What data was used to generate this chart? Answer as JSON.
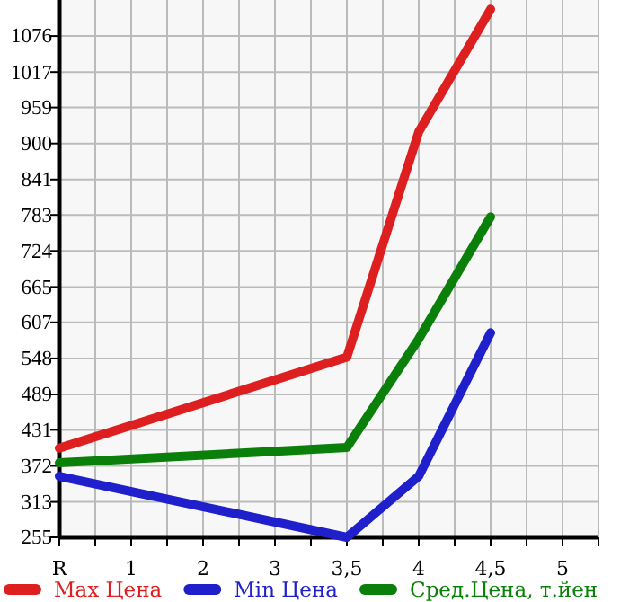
{
  "chart_data": {
    "type": "line",
    "categories": [
      "R",
      "1",
      "2",
      "3",
      "3,5",
      "4",
      "4,5",
      "5"
    ],
    "series": [
      {
        "name": "Max Цена",
        "color": "#dd1f1f",
        "values": [
          401,
          null,
          null,
          null,
          550,
          919,
          1120,
          null
        ]
      },
      {
        "name": "Min Цена",
        "color": "#1f1fcc",
        "values": [
          355,
          null,
          null,
          null,
          255,
          355,
          590,
          null
        ]
      },
      {
        "name": "Сред.Цена, т.йен",
        "color": "#0a800a",
        "values": [
          377,
          null,
          null,
          null,
          402,
          580,
          780,
          null
        ]
      }
    ],
    "ylim": [
      255,
      1135
    ],
    "yticks": [
      255,
      313,
      372,
      431,
      489,
      548,
      607,
      665,
      724,
      783,
      841,
      900,
      959,
      1017,
      1076
    ],
    "grid": true,
    "legend": "bottom",
    "marker": "none",
    "line_style": "solid"
  }
}
